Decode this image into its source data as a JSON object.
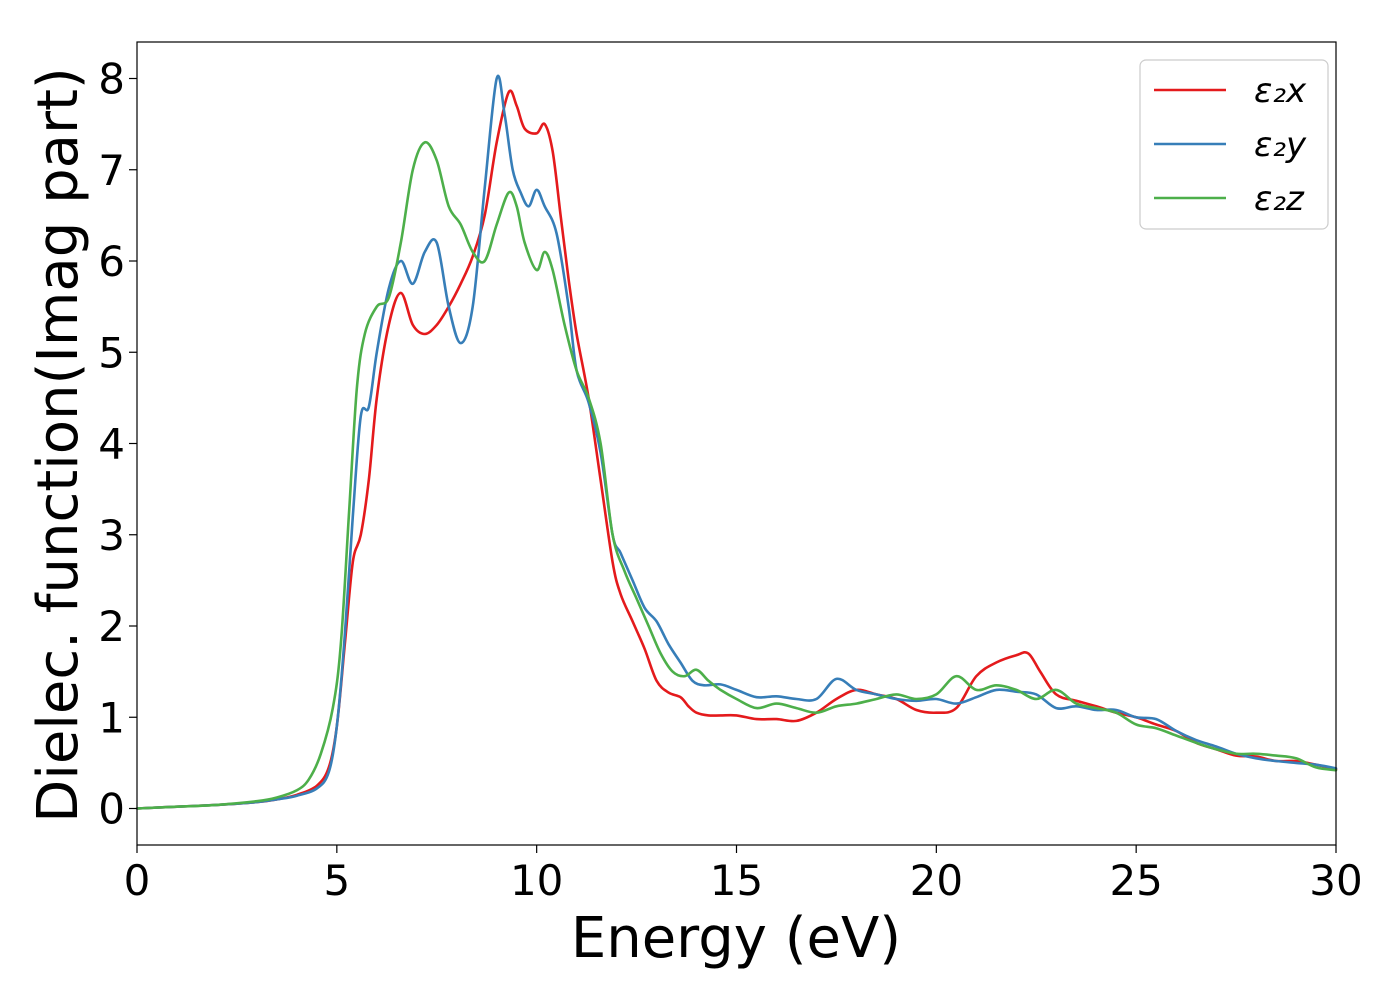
{
  "chart_data": {
    "type": "line",
    "xlabel": "Energy (eV)",
    "ylabel": "Dielec. function(Imag part)",
    "xlim": [
      0,
      30
    ],
    "ylim": [
      -0.4,
      8.4
    ],
    "xticks": [
      0,
      5,
      10,
      15,
      20,
      25,
      30
    ],
    "yticks": [
      0,
      1,
      2,
      3,
      4,
      5,
      6,
      7,
      8
    ],
    "grid": false,
    "legend_position": "top-right",
    "series": [
      {
        "name": "ε₂x",
        "color": "#e41a1c",
        "x": [
          0,
          1,
          2,
          3,
          3.5,
          4,
          4.5,
          4.8,
          5.0,
          5.2,
          5.4,
          5.6,
          5.8,
          6.0,
          6.3,
          6.6,
          6.9,
          7.2,
          7.5,
          7.8,
          8.1,
          8.4,
          8.7,
          9.0,
          9.3,
          9.5,
          9.7,
          10.0,
          10.2,
          10.4,
          10.6,
          10.8,
          11.0,
          11.3,
          11.6,
          11.9,
          12.1,
          12.4,
          12.7,
          13.0,
          13.3,
          13.6,
          13.8,
          14.0,
          14.3,
          14.6,
          15.0,
          15.5,
          16.0,
          16.5,
          17.0,
          17.5,
          18.0,
          18.5,
          19.0,
          19.5,
          20.0,
          20.5,
          21.0,
          21.5,
          22.0,
          22.3,
          22.6,
          23.0,
          23.5,
          24.0,
          24.5,
          25.0,
          25.5,
          26.0,
          26.5,
          27.0,
          27.5,
          28.0,
          28.5,
          29.0,
          29.5,
          30.0
        ],
        "y": [
          0,
          0.02,
          0.04,
          0.07,
          0.1,
          0.15,
          0.25,
          0.45,
          0.9,
          1.8,
          2.7,
          3.0,
          3.6,
          4.5,
          5.3,
          5.65,
          5.3,
          5.2,
          5.3,
          5.5,
          5.75,
          6.05,
          6.5,
          7.3,
          7.85,
          7.7,
          7.45,
          7.4,
          7.5,
          7.2,
          6.5,
          5.8,
          5.2,
          4.5,
          3.6,
          2.7,
          2.35,
          2.05,
          1.75,
          1.4,
          1.27,
          1.22,
          1.12,
          1.05,
          1.02,
          1.02,
          1.02,
          0.98,
          0.98,
          0.96,
          1.05,
          1.2,
          1.3,
          1.25,
          1.2,
          1.08,
          1.05,
          1.1,
          1.45,
          1.6,
          1.68,
          1.7,
          1.5,
          1.25,
          1.18,
          1.12,
          1.05,
          1.0,
          0.92,
          0.85,
          0.72,
          0.65,
          0.58,
          0.57,
          0.52,
          0.52,
          0.48,
          0.43
        ]
      },
      {
        "name": "ε₂y",
        "color": "#377eb8",
        "x": [
          0,
          1,
          2,
          3,
          3.5,
          4,
          4.5,
          4.8,
          5.0,
          5.2,
          5.4,
          5.6,
          5.8,
          6.0,
          6.3,
          6.6,
          6.9,
          7.2,
          7.5,
          7.8,
          8.1,
          8.4,
          8.7,
          9.0,
          9.2,
          9.4,
          9.6,
          9.8,
          10.0,
          10.2,
          10.5,
          10.8,
          11.0,
          11.3,
          11.6,
          11.9,
          12.1,
          12.4,
          12.7,
          13.0,
          13.3,
          13.6,
          13.9,
          14.2,
          14.6,
          15.0,
          15.5,
          16.0,
          16.5,
          17.0,
          17.5,
          18.0,
          18.5,
          19.0,
          19.5,
          20.0,
          20.5,
          21.0,
          21.5,
          22.0,
          22.5,
          23.0,
          23.5,
          24.0,
          24.5,
          25.0,
          25.5,
          26.0,
          26.5,
          27.0,
          27.5,
          28.0,
          28.5,
          29.0,
          29.5,
          30.0
        ],
        "y": [
          0,
          0.02,
          0.04,
          0.07,
          0.1,
          0.14,
          0.22,
          0.4,
          0.9,
          1.9,
          3.2,
          4.3,
          4.4,
          5.0,
          5.7,
          6.0,
          5.75,
          6.1,
          6.2,
          5.5,
          5.1,
          5.5,
          6.8,
          8.0,
          7.6,
          7.0,
          6.75,
          6.6,
          6.78,
          6.6,
          6.3,
          5.5,
          4.8,
          4.45,
          3.9,
          3.0,
          2.8,
          2.5,
          2.2,
          2.05,
          1.8,
          1.6,
          1.4,
          1.35,
          1.36,
          1.3,
          1.22,
          1.23,
          1.2,
          1.2,
          1.42,
          1.3,
          1.25,
          1.2,
          1.18,
          1.2,
          1.15,
          1.22,
          1.3,
          1.28,
          1.25,
          1.1,
          1.12,
          1.08,
          1.08,
          1.0,
          0.98,
          0.85,
          0.75,
          0.68,
          0.6,
          0.55,
          0.52,
          0.5,
          0.48,
          0.44
        ]
      },
      {
        "name": "ε₂z",
        "color": "#4daf4a",
        "x": [
          0,
          1,
          2,
          3,
          3.5,
          4,
          4.3,
          4.6,
          4.9,
          5.1,
          5.3,
          5.5,
          5.7,
          6.0,
          6.3,
          6.6,
          6.9,
          7.2,
          7.5,
          7.8,
          8.1,
          8.4,
          8.7,
          9.0,
          9.3,
          9.5,
          9.7,
          10.0,
          10.2,
          10.4,
          10.7,
          11.0,
          11.3,
          11.6,
          11.9,
          12.2,
          12.5,
          12.8,
          13.1,
          13.4,
          13.7,
          14.0,
          14.3,
          14.6,
          15.0,
          15.5,
          16.0,
          16.5,
          17.0,
          17.5,
          18.0,
          18.5,
          19.0,
          19.5,
          20.0,
          20.5,
          21.0,
          21.5,
          22.0,
          22.5,
          23.0,
          23.5,
          24.0,
          24.5,
          25.0,
          25.5,
          26.0,
          26.5,
          27.0,
          27.5,
          28.0,
          28.5,
          29.0,
          29.5,
          30.0
        ],
        "y": [
          0,
          0.02,
          0.04,
          0.08,
          0.12,
          0.2,
          0.32,
          0.6,
          1.1,
          1.8,
          3.2,
          4.6,
          5.2,
          5.5,
          5.6,
          6.2,
          7.0,
          7.3,
          7.1,
          6.6,
          6.4,
          6.1,
          6.0,
          6.4,
          6.75,
          6.6,
          6.2,
          5.9,
          6.1,
          5.9,
          5.3,
          4.8,
          4.5,
          4.0,
          3.0,
          2.6,
          2.3,
          2.0,
          1.7,
          1.5,
          1.45,
          1.52,
          1.4,
          1.3,
          1.2,
          1.1,
          1.15,
          1.1,
          1.05,
          1.12,
          1.15,
          1.2,
          1.25,
          1.2,
          1.25,
          1.45,
          1.3,
          1.35,
          1.3,
          1.2,
          1.3,
          1.15,
          1.1,
          1.05,
          0.92,
          0.88,
          0.8,
          0.72,
          0.65,
          0.6,
          0.6,
          0.58,
          0.55,
          0.45,
          0.42
        ]
      }
    ]
  }
}
